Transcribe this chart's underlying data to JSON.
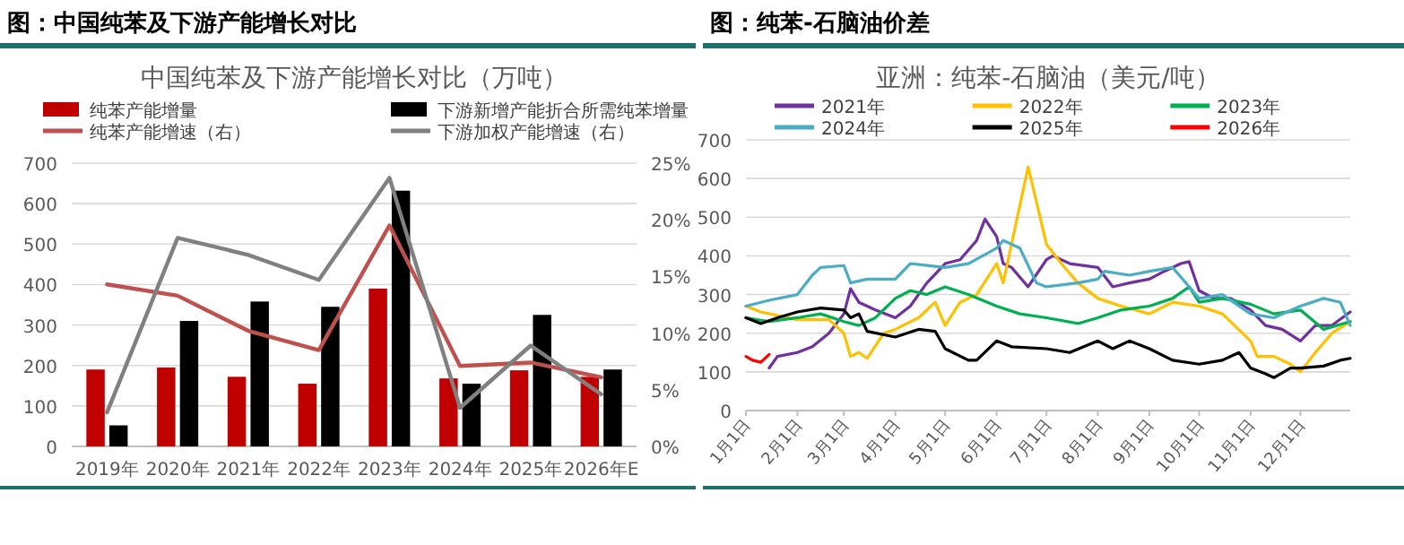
{
  "chart_data": [
    {
      "type": "bar",
      "subtitle": "图：中国纯苯及下游产能增长对比",
      "title": "中国纯苯及下游产能增长对比（万吨）",
      "categories": [
        "2019年",
        "2020年",
        "2021年",
        "2022年",
        "2023年",
        "2024年",
        "2025年",
        "2026年E"
      ],
      "series": [
        {
          "name": "纯苯产能增量",
          "type": "bar",
          "color": "#c00000",
          "values": [
            190,
            195,
            172,
            155,
            390,
            168,
            188,
            172
          ]
        },
        {
          "name": "下游新增产能折合所需纯苯增量",
          "type": "bar",
          "color": "#000000",
          "values": [
            52,
            310,
            358,
            345,
            632,
            155,
            325,
            190
          ]
        },
        {
          "name": "纯苯产能增速（右）",
          "type": "line",
          "axis": "y2",
          "color": "#c0504d",
          "values": [
            14.3,
            13.3,
            10.2,
            8.5,
            19.5,
            7.1,
            7.4,
            6.1
          ]
        },
        {
          "name": "下游加权产能增速（右）",
          "type": "line",
          "axis": "y2",
          "color": "#808080",
          "values": [
            3.0,
            18.4,
            16.9,
            14.7,
            23.7,
            3.4,
            8.9,
            4.6
          ]
        }
      ],
      "ylim": [
        0,
        700
      ],
      "yticks": [
        0,
        100,
        200,
        300,
        400,
        500,
        600,
        700
      ],
      "y2lim": [
        0,
        25
      ],
      "y2ticks": [
        {
          "value": 0,
          "label": "0%"
        },
        {
          "value": 5,
          "label": "5%"
        },
        {
          "value": 10,
          "label": "10%"
        },
        {
          "value": 15,
          "label": "15%"
        },
        {
          "value": 20,
          "label": "20%"
        },
        {
          "value": 25,
          "label": "25%"
        }
      ],
      "grid": "y",
      "legend": "top"
    },
    {
      "type": "line",
      "subtitle": "图：纯苯-石脑油价差",
      "title": "亚洲：纯苯-石脑油（美元/吨）",
      "series": [
        {
          "name": "2021年",
          "color": "#7030a0",
          "x": [
            "--01-15",
            "--01-20",
            "--02-01",
            "--02-10",
            "--02-20",
            "--03-01",
            "--03-05",
            "--03-10",
            "--03-20",
            "--04-01",
            "--04-10",
            "--04-20",
            "--05-01",
            "--05-10",
            "--05-20",
            "--05-25",
            "--06-01",
            "--06-05",
            "--06-10",
            "--06-20",
            "--07-01",
            "--07-05",
            "--07-15",
            "--08-01",
            "--08-10",
            "--08-20",
            "--09-01",
            "--09-10",
            "--09-20",
            "--09-25",
            "--10-01",
            "--10-10",
            "--10-20",
            "--11-01",
            "--11-10",
            "--11-20",
            "--12-01",
            "--12-10",
            "--12-20",
            "--12-31"
          ],
          "values": [
            110,
            140,
            150,
            165,
            200,
            250,
            315,
            280,
            260,
            240,
            270,
            330,
            380,
            390,
            440,
            495,
            450,
            380,
            370,
            320,
            390,
            400,
            380,
            370,
            320,
            330,
            340,
            360,
            380,
            385,
            310,
            290,
            290,
            260,
            220,
            210,
            180,
            220,
            220,
            255
          ]
        },
        {
          "name": "2022年",
          "color": "#ffc000",
          "x": [
            "--01-01",
            "--01-10",
            "--02-01",
            "--02-20",
            "--03-01",
            "--03-05",
            "--03-10",
            "--03-15",
            "--03-25",
            "--04-01",
            "--04-15",
            "--04-25",
            "--05-01",
            "--05-10",
            "--05-20",
            "--06-01",
            "--06-05",
            "--06-10",
            "--06-15",
            "--06-20",
            "--06-25",
            "--07-01",
            "--07-10",
            "--07-20",
            "--08-01",
            "--08-15",
            "--09-01",
            "--09-15",
            "--10-01",
            "--10-15",
            "--11-01",
            "--11-05",
            "--11-15",
            "--11-25",
            "--12-01",
            "--12-10",
            "--12-20",
            "--12-31"
          ],
          "values": [
            270,
            255,
            235,
            235,
            200,
            140,
            150,
            135,
            200,
            210,
            240,
            280,
            220,
            280,
            300,
            380,
            330,
            430,
            530,
            630,
            540,
            430,
            380,
            330,
            290,
            270,
            250,
            280,
            270,
            250,
            180,
            140,
            140,
            120,
            100,
            150,
            200,
            230
          ]
        },
        {
          "name": "2023年",
          "color": "#00b050",
          "x": [
            "--01-01",
            "--01-15",
            "--02-01",
            "--02-15",
            "--03-01",
            "--03-10",
            "--03-20",
            "--04-01",
            "--04-10",
            "--04-20",
            "--05-01",
            "--05-15",
            "--06-01",
            "--06-15",
            "--07-01",
            "--07-20",
            "--08-01",
            "--08-15",
            "--09-01",
            "--09-15",
            "--09-25",
            "--10-01",
            "--10-15",
            "--11-01",
            "--11-15",
            "--12-01",
            "--12-15",
            "--12-31"
          ],
          "values": [
            240,
            230,
            240,
            250,
            230,
            220,
            240,
            290,
            310,
            300,
            320,
            300,
            270,
            250,
            240,
            225,
            240,
            260,
            270,
            290,
            320,
            280,
            290,
            275,
            250,
            260,
            210,
            230
          ]
        },
        {
          "name": "2024年",
          "color": "#4bacc6",
          "x": [
            "--01-01",
            "--01-15",
            "--02-01",
            "--02-10",
            "--02-15",
            "--03-01",
            "--03-05",
            "--03-15",
            "--04-01",
            "--04-10",
            "--05-01",
            "--05-15",
            "--06-01",
            "--06-05",
            "--06-15",
            "--06-25",
            "--07-01",
            "--07-20",
            "--08-01",
            "--08-05",
            "--08-20",
            "--09-01",
            "--09-15",
            "--09-25",
            "--10-01",
            "--10-15",
            "--11-01",
            "--11-15",
            "--12-01",
            "--12-15",
            "--12-25",
            "--12-31"
          ],
          "values": [
            270,
            285,
            300,
            350,
            370,
            375,
            330,
            340,
            340,
            380,
            370,
            380,
            420,
            440,
            420,
            330,
            320,
            330,
            340,
            360,
            350,
            360,
            370,
            320,
            290,
            300,
            250,
            240,
            270,
            290,
            280,
            220
          ]
        },
        {
          "name": "2025年",
          "color": "#000000",
          "x": [
            "--01-01",
            "--01-10",
            "--01-20",
            "--02-01",
            "--02-15",
            "--03-01",
            "--03-05",
            "--03-10",
            "--03-15",
            "--04-01",
            "--04-15",
            "--04-25",
            "--05-01",
            "--05-15",
            "--05-20",
            "--06-01",
            "--06-10",
            "--07-01",
            "--07-15",
            "--08-01",
            "--08-10",
            "--08-20",
            "--09-01",
            "--09-15",
            "--10-01",
            "--10-15",
            "--10-25",
            "--11-01",
            "--11-10",
            "--11-15",
            "--11-25",
            "--12-01",
            "--12-15",
            "--12-25",
            "--12-31"
          ],
          "values": [
            240,
            225,
            240,
            255,
            265,
            260,
            240,
            250,
            205,
            190,
            210,
            205,
            160,
            130,
            130,
            180,
            165,
            160,
            150,
            180,
            160,
            180,
            160,
            130,
            120,
            130,
            150,
            110,
            95,
            85,
            110,
            110,
            115,
            130,
            135
          ]
        },
        {
          "name": "2026年",
          "color": "#ff0000",
          "x": [
            "--01-01",
            "--01-05",
            "--01-10",
            "--01-15"
          ],
          "values": [
            140,
            130,
            125,
            145
          ]
        }
      ],
      "xlim": [
        "--01-01",
        "--12-31"
      ],
      "xticks": [
        {
          "value": "--01-01",
          "label": "1月1日"
        },
        {
          "value": "--02-01",
          "label": "2月1日"
        },
        {
          "value": "--03-01",
          "label": "3月1日"
        },
        {
          "value": "--04-01",
          "label": "4月1日"
        },
        {
          "value": "--05-01",
          "label": "5月1日"
        },
        {
          "value": "--06-01",
          "label": "6月1日"
        },
        {
          "value": "--07-01",
          "label": "7月1日"
        },
        {
          "value": "--08-01",
          "label": "8月1日"
        },
        {
          "value": "--09-01",
          "label": "9月1日"
        },
        {
          "value": "--10-01",
          "label": "10月1日"
        },
        {
          "value": "--11-01",
          "label": "11月1日"
        },
        {
          "value": "--12-01",
          "label": "12月1日"
        }
      ],
      "ylim": [
        0,
        700
      ],
      "yticks": [
        0,
        100,
        200,
        300,
        400,
        500,
        600,
        700
      ],
      "grid": "y",
      "legend": "top"
    }
  ]
}
